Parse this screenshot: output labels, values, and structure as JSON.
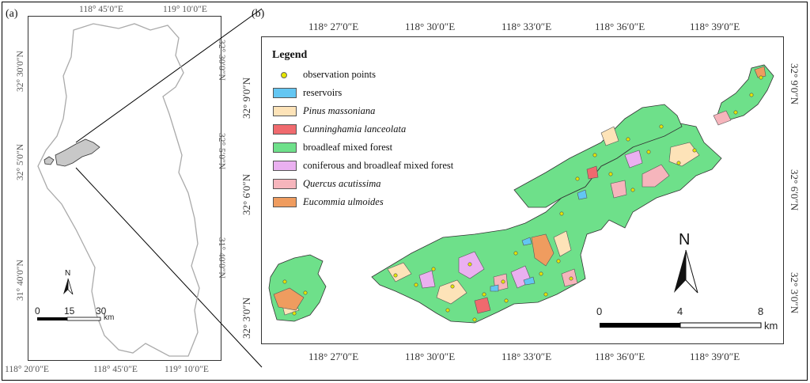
{
  "panel_a": {
    "label": "(a)",
    "top_ticks": [
      "118° 45′0″E",
      "119° 10′0″E"
    ],
    "bottom_ticks": [
      "118° 20′0″E",
      "118° 45′0″E",
      "119° 10′0″E"
    ],
    "left_ticks": [
      "32° 30′0″N",
      "32° 5′0″N",
      "31° 40′0″N"
    ],
    "right_ticks": [
      "32° 30′0″N",
      "32° 5′0″N",
      "31° 40′0″N"
    ],
    "scalebar": {
      "labels": [
        "0",
        "15",
        "30"
      ],
      "unit": "km"
    },
    "north_label": "N"
  },
  "panel_b": {
    "label": "(b)",
    "top_ticks": [
      "118° 27′0″E",
      "118° 30′0″E",
      "118° 33′0″E",
      "118° 36′0″E",
      "118° 39′0″E"
    ],
    "bottom_ticks": [
      "118° 27′0″E",
      "118° 30′0″E",
      "118° 33′0″E",
      "118° 36′0″E",
      "118° 39′0″E"
    ],
    "left_ticks": [
      "32° 9′0″N",
      "32° 6′0″N",
      "32° 3′0″N"
    ],
    "right_ticks": [
      "32° 9′0″N",
      "32° 6′0″N",
      "32° 3′0″N"
    ],
    "scalebar": {
      "labels": [
        "0",
        "4",
        "8"
      ],
      "unit": "km"
    },
    "north_label": "N"
  },
  "legend": {
    "title": "Legend",
    "items": [
      {
        "label": "observation points",
        "kind": "point",
        "color": "#e6e600",
        "italic": false
      },
      {
        "label": "reservoirs",
        "kind": "fill",
        "color": "#63c6f2",
        "italic": false
      },
      {
        "label": "Pinus massoniana",
        "kind": "fill",
        "color": "#fde3b8",
        "italic": true
      },
      {
        "label": "Cunninghamia lanceolata",
        "kind": "fill",
        "color": "#f06a6e",
        "italic": true
      },
      {
        "label": "broadleaf mixed forest",
        "kind": "fill",
        "color": "#6ee08a",
        "italic": false
      },
      {
        "label": "coniferous and broadleaf mixed forest",
        "kind": "fill",
        "color": "#eab0f0",
        "italic": false
      },
      {
        "label": "Quercus acutissima",
        "kind": "fill",
        "color": "#f6b5bc",
        "italic": true
      },
      {
        "label": "Eucommia ulmoides",
        "kind": "fill",
        "color": "#ef9c5f",
        "italic": true
      }
    ]
  }
}
